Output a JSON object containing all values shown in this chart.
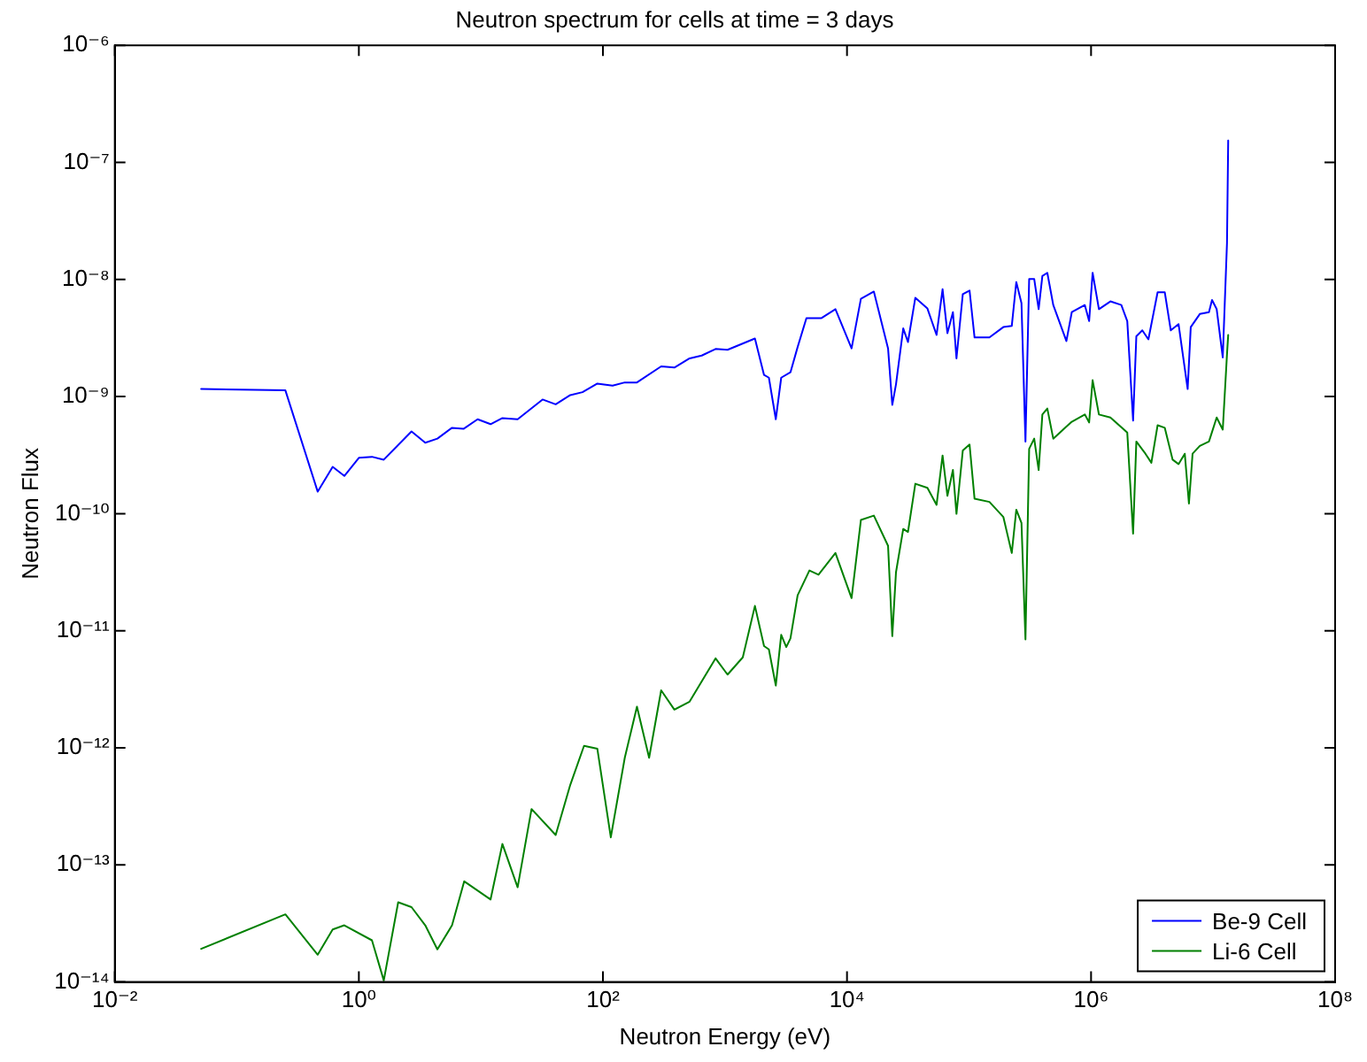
{
  "chart_data": {
    "type": "line",
    "title": "Neutron spectrum for cells at time = 3 days",
    "xlabel": "Neutron Energy (eV)",
    "ylabel": "Neutron Flux",
    "log": "xy",
    "grid": false,
    "legend": "bottom right",
    "marker": "none",
    "line_style": "solid",
    "xlim": [
      0.01,
      100000000
    ],
    "ylim": [
      1e-14,
      1e-06
    ],
    "xticks": [
      {
        "value": 0.01,
        "label": "10⁻²"
      },
      {
        "value": 1,
        "label": "10⁰"
      },
      {
        "value": 100,
        "label": "10²"
      },
      {
        "value": 10000,
        "label": "10⁴"
      },
      {
        "value": 1000000,
        "label": "10⁶"
      },
      {
        "value": 100000000,
        "label": "10⁸"
      }
    ],
    "yticks": [
      {
        "value": 1e-14,
        "label": "10⁻¹⁴"
      },
      {
        "value": 1e-13,
        "label": "10⁻¹³"
      },
      {
        "value": 1e-12,
        "label": "10⁻¹²"
      },
      {
        "value": 1e-11,
        "label": "10⁻¹¹"
      },
      {
        "value": 1e-10,
        "label": "10⁻¹⁰"
      },
      {
        "value": 1e-09,
        "label": "10⁻⁹"
      },
      {
        "value": 1e-08,
        "label": "10⁻⁸"
      },
      {
        "value": 1e-07,
        "label": "10⁻⁷"
      },
      {
        "value": 1e-06,
        "label": "10⁻⁶"
      }
    ],
    "series": [
      {
        "name": "Be-9 Cell",
        "color": "#0000ff",
        "x": [
          0.051,
          0.25,
          0.46,
          0.61,
          0.76,
          1.0,
          1.28,
          1.6,
          2.7,
          3.5,
          4.4,
          5.8,
          7.2,
          9.4,
          12,
          15,
          20,
          32,
          41,
          54,
          68,
          90,
          120,
          151,
          190,
          300,
          385,
          513,
          645,
          837,
          1050,
          1760,
          2090,
          2290,
          2610,
          2890,
          3440,
          3940,
          4650,
          6180,
          8040,
          10900,
          13000,
          16600,
          21700,
          23500,
          25200,
          28900,
          31600,
          36300,
          45600,
          54200,
          60700,
          66500,
          73800,
          78900,
          88900,
          101000,
          111000,
          147000,
          191000,
          224000,
          244000,
          269000,
          290000,
          311000,
          342000,
          372000,
          399000,
          438000,
          490000,
          628000,
          695000,
          889000,
          964000,
          1030000,
          1160000,
          1440000,
          1770000,
          1980000,
          2210000,
          2350000,
          2630000,
          2950000,
          3510000,
          4020000,
          4500000,
          5210000,
          6190000,
          6560000,
          7780000,
          9250000,
          9800000,
          10700000,
          12000000,
          13000000,
          13300000
        ],
        "values": [
          1.16e-09,
          1.13e-09,
          1.54e-10,
          2.51e-10,
          2.1e-10,
          3e-10,
          3.06e-10,
          2.89e-10,
          5.04e-10,
          4.03e-10,
          4.37e-10,
          5.41e-10,
          5.3e-10,
          6.4e-10,
          5.81e-10,
          6.55e-10,
          6.4e-10,
          9.44e-10,
          8.59e-10,
          1.03e-09,
          1.09e-09,
          1.29e-09,
          1.24e-09,
          1.32e-09,
          1.32e-09,
          1.81e-09,
          1.77e-09,
          2.12e-09,
          2.24e-09,
          2.55e-09,
          2.51e-09,
          3.13e-09,
          1.53e-09,
          1.45e-09,
          6.4e-10,
          1.45e-09,
          1.61e-09,
          2.65e-09,
          4.68e-09,
          4.68e-09,
          5.58e-09,
          2.58e-09,
          6.84e-09,
          7.88e-09,
          2.58e-09,
          8.49e-10,
          1.27e-09,
          3.82e-09,
          2.92e-09,
          6.98e-09,
          5.65e-09,
          3.36e-09,
          8.26e-09,
          3.48e-09,
          5.26e-09,
          2.12e-09,
          7.5e-09,
          8.05e-09,
          3.2e-09,
          3.2e-09,
          3.92e-09,
          4.01e-09,
          9.51e-09,
          6.28e-09,
          4.13e-10,
          1.01e-08,
          1.01e-08,
          5.58e-09,
          1.07e-08,
          1.14e-08,
          6.05e-09,
          2.98e-09,
          5.26e-09,
          6.05e-09,
          4.41e-09,
          1.14e-08,
          5.58e-09,
          6.5e-09,
          6.05e-09,
          4.41e-09,
          6.24e-10,
          3.27e-09,
          3.68e-09,
          3.08e-09,
          7.77e-09,
          7.77e-09,
          3.68e-09,
          4.16e-09,
          1.16e-09,
          3.92e-09,
          5.07e-09,
          5.26e-09,
          6.67e-09,
          5.58e-09,
          2.16e-09,
          2.06e-08,
          1.54e-07
        ]
      },
      {
        "name": "Li-6 Cell",
        "color": "#008000",
        "x": [
          0.051,
          0.25,
          0.46,
          0.61,
          0.76,
          1.28,
          1.6,
          2.1,
          2.7,
          3.5,
          4.4,
          5.8,
          7.3,
          12,
          15,
          20,
          26,
          41,
          54,
          70,
          90,
          116,
          151,
          190,
          239,
          300,
          385,
          513,
          837,
          1050,
          1400,
          1760,
          2090,
          2290,
          2610,
          2890,
          3180,
          3440,
          3940,
          4920,
          5840,
          8040,
          10900,
          13000,
          16600,
          21700,
          23500,
          25200,
          28900,
          31600,
          36300,
          45600,
          54200,
          60700,
          66500,
          73800,
          78900,
          88900,
          101000,
          111000,
          147000,
          191000,
          224000,
          244000,
          269000,
          290000,
          311000,
          342000,
          372000,
          399000,
          438000,
          490000,
          628000,
          695000,
          889000,
          964000,
          1030000,
          1160000,
          1440000,
          1980000,
          2210000,
          2350000,
          2790000,
          3120000,
          3510000,
          4020000,
          4660000,
          5210000,
          5860000,
          6340000,
          6790000,
          7780000,
          9250000,
          10700000,
          12000000,
          13000000,
          13300000
        ],
        "values": [
          1.92e-14,
          3.78e-14,
          1.71e-14,
          2.81e-14,
          3.05e-14,
          2.27e-14,
          1.03e-14,
          4.8e-14,
          4.36e-14,
          3.05e-14,
          1.9e-14,
          3.05e-14,
          7.24e-14,
          5.07e-14,
          1.51e-13,
          6.44e-14,
          3e-13,
          1.8e-13,
          4.83e-13,
          1.04e-12,
          9.82e-13,
          1.72e-13,
          8.22e-13,
          2.25e-12,
          8.22e-13,
          3.1e-12,
          2.12e-12,
          2.48e-12,
          5.81e-12,
          4.22e-12,
          5.93e-12,
          1.63e-11,
          7.4e-12,
          6.93e-12,
          3.4e-12,
          9.22e-12,
          7.26e-12,
          8.59e-12,
          2.01e-11,
          3.27e-11,
          3.01e-11,
          4.61e-11,
          1.9e-11,
          8.83e-11,
          9.62e-11,
          5.31e-11,
          8.99e-12,
          3.15e-11,
          7.4e-11,
          6.98e-11,
          1.8e-10,
          1.66e-10,
          1.19e-10,
          3.14e-10,
          1.42e-10,
          2.36e-10,
          9.97e-11,
          3.46e-10,
          3.89e-10,
          1.34e-10,
          1.26e-10,
          9.38e-11,
          4.61e-11,
          1.08e-10,
          8.34e-11,
          8.45e-12,
          3.58e-10,
          4.37e-10,
          2.36e-10,
          7.03e-10,
          7.91e-10,
          4.37e-10,
          5.55e-10,
          6.1e-10,
          7.03e-10,
          6.01e-10,
          1.38e-09,
          7.03e-10,
          6.62e-10,
          4.93e-10,
          6.75e-11,
          4.13e-10,
          3.25e-10,
          2.72e-10,
          5.69e-10,
          5.41e-10,
          2.89e-10,
          2.65e-10,
          3.25e-10,
          1.22e-10,
          3.25e-10,
          3.79e-10,
          4.13e-10,
          6.62e-10,
          5.22e-10,
          2.3e-09,
          3.36e-09
        ]
      }
    ]
  }
}
